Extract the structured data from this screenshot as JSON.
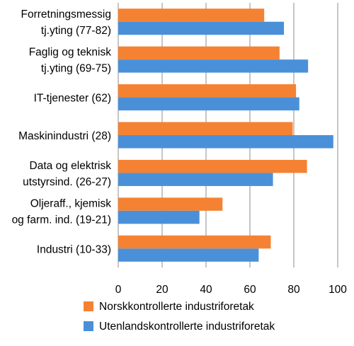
{
  "chart_data": {
    "type": "bar",
    "orientation": "horizontal",
    "categories": [
      [
        "Forretningsmessig",
        "tj.yting (77-82)"
      ],
      [
        "Faglig og teknisk",
        "tj.yting (69-75)"
      ],
      [
        "IT-tjenester (62)"
      ],
      [
        "Maskinindustri (28)"
      ],
      [
        "Data og elektrisk",
        "utstyrsind. (26-27)"
      ],
      [
        "Oljeraff., kjemisk",
        "og farm. ind. (19-21)"
      ],
      [
        "Industri (10-33)"
      ]
    ],
    "series": [
      {
        "name": "Norskkontrollerte industriforetak",
        "color": "#f58232",
        "values": [
          66.5,
          73.5,
          81,
          79.5,
          86,
          47.5,
          69.5
        ]
      },
      {
        "name": "Utenlandskontrollerte industriforetak",
        "color": "#4a90d9",
        "values": [
          75.5,
          86.5,
          82.5,
          98,
          70.5,
          37,
          64
        ]
      }
    ],
    "xlim": [
      0,
      100
    ],
    "xticks": [
      0,
      20,
      40,
      60,
      80,
      100
    ],
    "grid": true,
    "legend_position": "bottom-center",
    "title": "",
    "xlabel": "",
    "ylabel": ""
  }
}
